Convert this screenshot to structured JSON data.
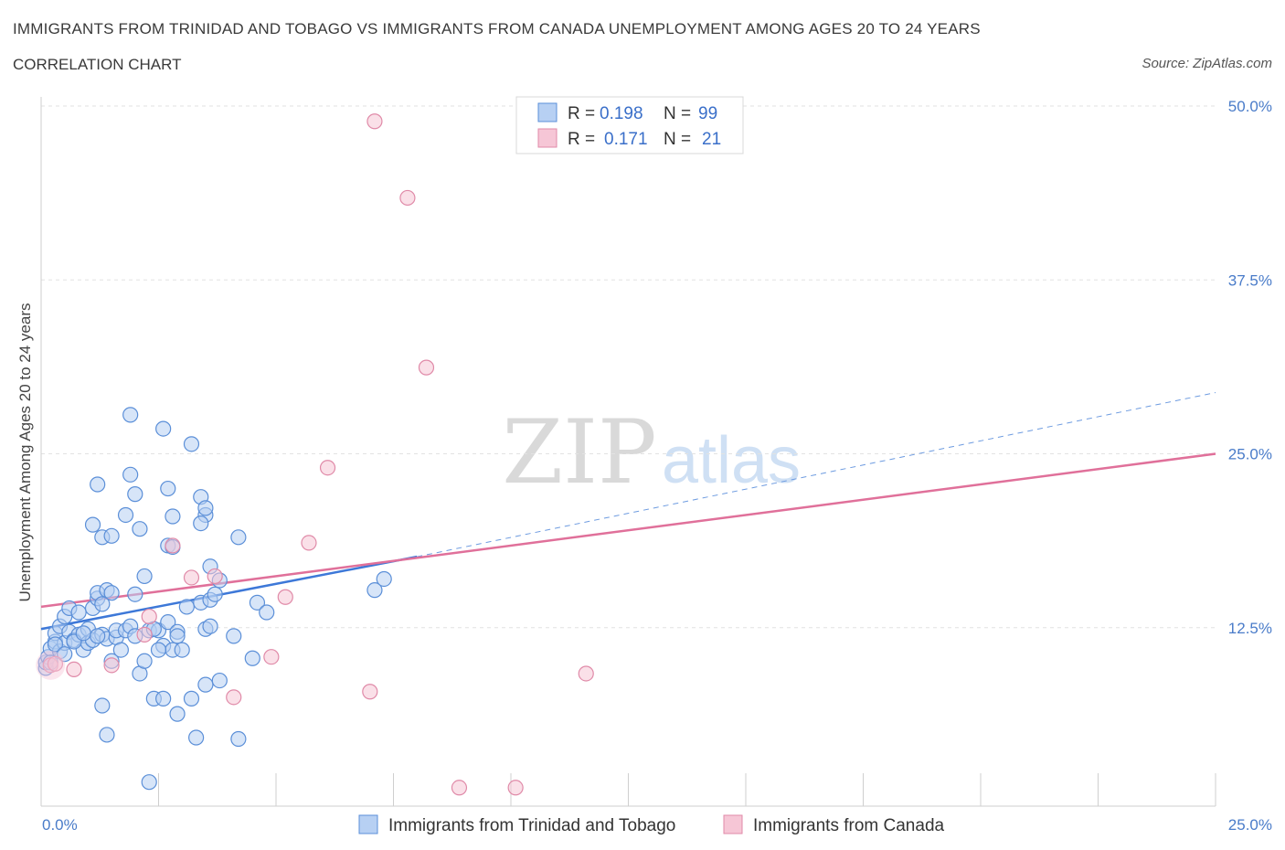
{
  "title": "IMMIGRANTS FROM TRINIDAD AND TOBAGO VS IMMIGRANTS FROM CANADA UNEMPLOYMENT AMONG AGES 20 TO 24 YEARS",
  "subtitle": "CORRELATION CHART",
  "source": "Source: ZipAtlas.com",
  "watermark": {
    "zip": "ZIP",
    "atlas": "atlas"
  },
  "colors": {
    "blue": "#3d78d8",
    "pink": "#e0709a",
    "blue_fill": "#b7d0f3",
    "pink_fill": "#f6c6d6",
    "tick": "#4a7cc9"
  },
  "legend": {
    "rows": [
      {
        "r_label": "R =",
        "r_value": "0.198",
        "n_label": "N =",
        "n_value": "99"
      },
      {
        "r_label": "R =",
        "r_value": "0.171",
        "n_label": "N =",
        "n_value": "21"
      }
    ]
  },
  "bottom_legend": [
    "Immigrants from Trinidad and Tobago",
    "Immigrants from Canada"
  ],
  "chart_data": {
    "type": "scatter",
    "xlabel": "",
    "ylabel": "Unemployment Among Ages 20 to 24 years",
    "xlim": [
      0,
      25
    ],
    "ylim": [
      0,
      50
    ],
    "x_tick_labels": [
      "0.0%",
      "25.0%"
    ],
    "y_tick_labels": [
      "12.5%",
      "25.0%",
      "37.5%",
      "50.0%"
    ],
    "y_ticks": [
      12.5,
      25,
      37.5,
      50
    ],
    "grid": true,
    "legend_position": "top-center",
    "series": [
      {
        "name": "Immigrants from Trinidad and Tobago",
        "color": "#3d78d8",
        "trend": {
          "x": [
            0,
            8
          ],
          "y": [
            12.4,
            17.6
          ],
          "dashed_extension": {
            "x": [
              8,
              25
            ],
            "y": [
              17.6,
              29.4
            ]
          }
        },
        "points": [
          [
            0.1,
            9.6
          ],
          [
            0.1,
            10.0
          ],
          [
            0.15,
            10.4
          ],
          [
            0.2,
            11.0
          ],
          [
            0.3,
            11.5
          ],
          [
            0.3,
            12.1
          ],
          [
            0.4,
            10.8
          ],
          [
            0.4,
            12.6
          ],
          [
            0.5,
            13.3
          ],
          [
            0.5,
            11.4
          ],
          [
            0.6,
            12.2
          ],
          [
            0.6,
            13.9
          ],
          [
            0.7,
            11.6
          ],
          [
            0.8,
            12.0
          ],
          [
            0.8,
            13.6
          ],
          [
            0.9,
            10.9
          ],
          [
            1.0,
            11.4
          ],
          [
            1.0,
            12.4
          ],
          [
            1.1,
            11.6
          ],
          [
            1.1,
            13.9
          ],
          [
            1.2,
            14.6
          ],
          [
            1.2,
            15.0
          ],
          [
            1.3,
            14.2
          ],
          [
            1.3,
            12.0
          ],
          [
            1.4,
            11.7
          ],
          [
            1.4,
            15.2
          ],
          [
            1.5,
            15.0
          ],
          [
            1.5,
            10.1
          ],
          [
            1.6,
            11.8
          ],
          [
            1.6,
            12.3
          ],
          [
            1.7,
            10.9
          ],
          [
            1.8,
            12.3
          ],
          [
            1.9,
            12.6
          ],
          [
            2.0,
            11.9
          ],
          [
            2.0,
            14.9
          ],
          [
            2.1,
            9.2
          ],
          [
            2.2,
            10.1
          ],
          [
            2.2,
            16.2
          ],
          [
            2.3,
            12.3
          ],
          [
            2.4,
            7.4
          ],
          [
            2.5,
            12.3
          ],
          [
            2.6,
            11.2
          ],
          [
            2.6,
            7.4
          ],
          [
            2.7,
            12.9
          ],
          [
            2.8,
            10.9
          ],
          [
            2.9,
            12.2
          ],
          [
            2.9,
            11.9
          ],
          [
            3.0,
            10.9
          ],
          [
            3.1,
            14.0
          ],
          [
            3.2,
            7.4
          ],
          [
            3.4,
            14.3
          ],
          [
            3.5,
            12.4
          ],
          [
            3.6,
            14.5
          ],
          [
            3.6,
            12.6
          ],
          [
            3.7,
            14.9
          ],
          [
            1.1,
            19.9
          ],
          [
            1.3,
            19.0
          ],
          [
            1.5,
            19.1
          ],
          [
            1.2,
            22.8
          ],
          [
            1.8,
            20.6
          ],
          [
            1.9,
            23.5
          ],
          [
            2.0,
            22.1
          ],
          [
            2.1,
            19.6
          ],
          [
            1.9,
            27.8
          ],
          [
            2.6,
            26.8
          ],
          [
            2.7,
            22.5
          ],
          [
            2.8,
            20.5
          ],
          [
            2.7,
            18.4
          ],
          [
            2.8,
            18.3
          ],
          [
            3.4,
            21.9
          ],
          [
            3.5,
            20.6
          ],
          [
            3.5,
            21.1
          ],
          [
            3.4,
            20.0
          ],
          [
            3.6,
            16.9
          ],
          [
            3.8,
            15.9
          ],
          [
            3.2,
            25.7
          ],
          [
            4.2,
            19.0
          ],
          [
            4.6,
            14.3
          ],
          [
            4.8,
            13.6
          ],
          [
            4.1,
            11.9
          ],
          [
            4.5,
            10.3
          ],
          [
            7.1,
            15.2
          ],
          [
            7.3,
            16.0
          ],
          [
            3.5,
            8.4
          ],
          [
            3.8,
            8.7
          ],
          [
            2.9,
            6.3
          ],
          [
            3.3,
            4.6
          ],
          [
            4.2,
            4.5
          ],
          [
            1.3,
            6.9
          ],
          [
            1.4,
            4.8
          ],
          [
            2.3,
            1.4
          ],
          [
            0.2,
            10.0
          ],
          [
            0.3,
            11.3
          ],
          [
            0.5,
            10.6
          ],
          [
            0.7,
            11.5
          ],
          [
            0.9,
            12.1
          ],
          [
            1.2,
            11.9
          ],
          [
            2.4,
            12.4
          ],
          [
            2.5,
            10.9
          ]
        ]
      },
      {
        "name": "Immigrants from Canada",
        "color": "#e0709a",
        "trend": {
          "x": [
            0,
            25
          ],
          "y": [
            14.0,
            25.0
          ]
        },
        "points": [
          [
            0.2,
            9.8
          ],
          [
            0.3,
            9.9
          ],
          [
            0.7,
            9.5
          ],
          [
            1.5,
            9.8
          ],
          [
            2.2,
            12.0
          ],
          [
            2.3,
            13.3
          ],
          [
            2.8,
            18.4
          ],
          [
            3.2,
            16.1
          ],
          [
            3.7,
            16.2
          ],
          [
            4.1,
            7.5
          ],
          [
            4.9,
            10.4
          ],
          [
            5.2,
            14.7
          ],
          [
            5.7,
            18.6
          ],
          [
            6.1,
            24.0
          ],
          [
            7.0,
            7.9
          ],
          [
            7.1,
            48.9
          ],
          [
            7.8,
            43.4
          ],
          [
            8.2,
            31.2
          ],
          [
            8.9,
            1.0
          ],
          [
            10.1,
            1.0
          ],
          [
            11.6,
            9.2
          ]
        ]
      }
    ]
  }
}
